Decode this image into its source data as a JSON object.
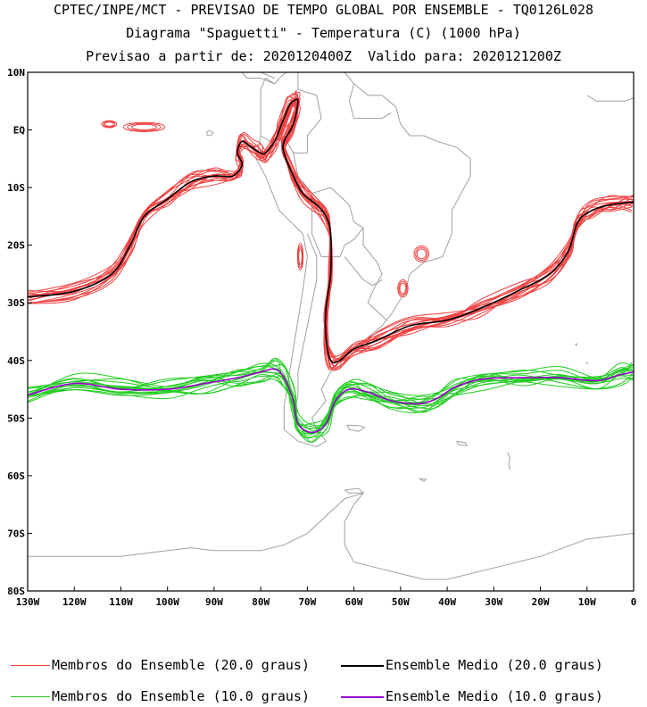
{
  "header": {
    "line1": "CPTEC/INPE/MCT - PREVISAO DE TEMPO GLOBAL POR ENSEMBLE - TQ0126L028",
    "line2": "Diagrama \"Spaguetti\" - Temperatura (C) (1000 hPa)",
    "line3": "Previsao a partir de: 2020120400Z  Valido para: 2020121200Z"
  },
  "axes": {
    "lat_labels": [
      "10N",
      "EQ",
      "10S",
      "20S",
      "30S",
      "40S",
      "50S",
      "60S",
      "70S",
      "80S"
    ],
    "lon_labels": [
      "130W",
      "120W",
      "110W",
      "100W",
      "90W",
      "80W",
      "70W",
      "60W",
      "50W",
      "40W",
      "30W",
      "20W",
      "10W",
      "0"
    ]
  },
  "legend": {
    "member_20": "Membros do Ensemble (20.0 graus)",
    "mean_20": "Ensemble Medio (20.0 graus)",
    "member_10": "Membros do Ensemble (10.0 graus)",
    "mean_10": "Ensemble Medio (10.0 graus)"
  },
  "colors": {
    "member_20": "#f04040",
    "mean_20": "#000000",
    "member_10": "#22cc22",
    "mean_10": "#9900cc",
    "land": "#a0a0a0"
  },
  "map_extent": {
    "lon": [
      -130,
      0
    ],
    "lat": [
      -80,
      10
    ]
  },
  "contours": {
    "mean_20": [
      [
        -130,
        -29
      ],
      [
        -120,
        -28
      ],
      [
        -112,
        -25
      ],
      [
        -108,
        -20
      ],
      [
        -105,
        -15
      ],
      [
        -100,
        -12
      ],
      [
        -95,
        -9
      ],
      [
        -90,
        -8
      ],
      [
        -86,
        -8
      ],
      [
        -84,
        -6
      ],
      [
        -85,
        -4
      ],
      [
        -84,
        -2
      ],
      [
        -82,
        -3
      ],
      [
        -80,
        -4
      ],
      [
        -79,
        -4
      ],
      [
        -77,
        -2
      ],
      [
        -76,
        0
      ],
      [
        -74,
        4
      ],
      [
        -73,
        5
      ],
      [
        -72,
        5
      ],
      [
        -73,
        1
      ],
      [
        -75,
        -2
      ],
      [
        -75,
        -4
      ],
      [
        -73,
        -8
      ],
      [
        -71,
        -11
      ],
      [
        -68,
        -13
      ],
      [
        -66,
        -15
      ],
      [
        -65,
        -18
      ],
      [
        -65,
        -25
      ],
      [
        -66,
        -31
      ],
      [
        -66,
        -36
      ],
      [
        -65,
        -40
      ],
      [
        -63,
        -40
      ],
      [
        -60,
        -38
      ],
      [
        -55,
        -36.5
      ],
      [
        -48,
        -34
      ],
      [
        -40,
        -33
      ],
      [
        -33,
        -31
      ],
      [
        -25,
        -28
      ],
      [
        -18,
        -25
      ],
      [
        -14,
        -21
      ],
      [
        -12,
        -16
      ],
      [
        -9,
        -14
      ],
      [
        -5,
        -13
      ],
      [
        0,
        -12.5
      ]
    ],
    "mean_10": [
      [
        -130,
        -46
      ],
      [
        -120,
        -44
      ],
      [
        -110,
        -45
      ],
      [
        -100,
        -45
      ],
      [
        -92,
        -44
      ],
      [
        -85,
        -43
      ],
      [
        -80,
        -42
      ],
      [
        -77,
        -41.5
      ],
      [
        -75,
        -43
      ],
      [
        -73,
        -47
      ],
      [
        -72,
        -51
      ],
      [
        -69,
        -52.5
      ],
      [
        -66,
        -51
      ],
      [
        -64,
        -47
      ],
      [
        -61,
        -45
      ],
      [
        -57,
        -45.5
      ],
      [
        -52,
        -47
      ],
      [
        -46,
        -47.5
      ],
      [
        -42,
        -46.5
      ],
      [
        -38,
        -44.5
      ],
      [
        -32,
        -43.2
      ],
      [
        -24,
        -43
      ],
      [
        -16,
        -43
      ],
      [
        -8,
        -43.5
      ],
      [
        -3,
        -42.5
      ],
      [
        0,
        -42
      ]
    ]
  }
}
